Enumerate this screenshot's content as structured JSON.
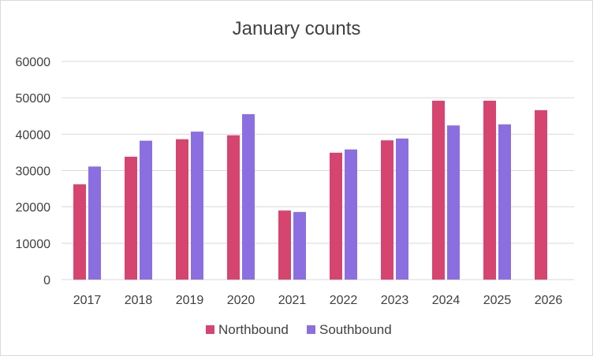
{
  "chart_data": {
    "type": "bar",
    "title": "January counts",
    "xlabel": "",
    "ylabel": "",
    "categories": [
      "2017",
      "2018",
      "2019",
      "2020",
      "2021",
      "2022",
      "2023",
      "2024",
      "2025",
      "2026"
    ],
    "series": [
      {
        "name": "Northbound",
        "color": "#d6456f",
        "values": [
          26200,
          33800,
          38600,
          39700,
          19000,
          34900,
          38300,
          49200,
          49200,
          46600
        ]
      },
      {
        "name": "Southbound",
        "color": "#8b6fe0",
        "values": [
          31100,
          38200,
          40700,
          45500,
          18600,
          35800,
          38800,
          42400,
          42700,
          null
        ]
      }
    ],
    "ylim": [
      0,
      60000
    ],
    "yticks": [
      "0",
      "10000",
      "20000",
      "30000",
      "40000",
      "50000",
      "60000"
    ],
    "grid": true,
    "gridline_color": "#d9d9d9",
    "legend_position": "bottom"
  }
}
